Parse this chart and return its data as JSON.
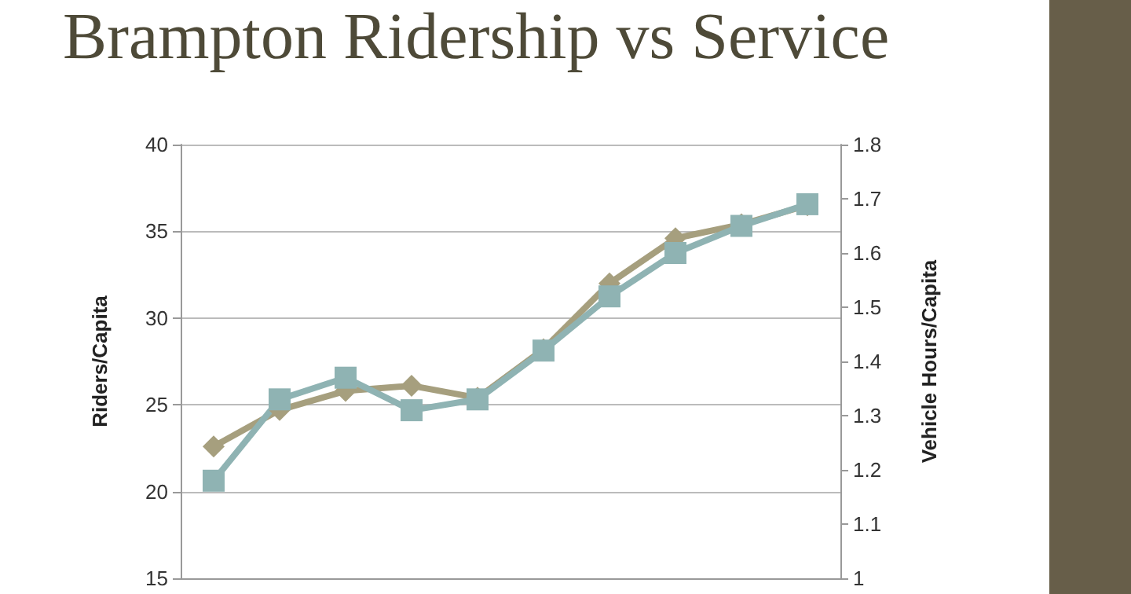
{
  "chart_data": {
    "type": "line",
    "title": "Brampton Ridership vs Service",
    "ylabel": "Riders/Capita",
    "y2label": "Vehicle Hours/Capita",
    "categories": [
      null,
      null,
      null,
      null,
      null,
      null,
      null,
      null,
      null,
      null
    ],
    "series": [
      {
        "color": "#a69f7e",
        "marker": "diamond",
        "values": [
          22.6,
          24.7,
          25.8,
          26.1,
          25.4,
          28.2,
          32.0,
          34.6,
          35.4,
          36.5
        ]
      },
      {
        "color": "#8fb3b3",
        "marker": "square",
        "axis": "y2",
        "values": [
          1.18,
          1.33,
          1.37,
          1.31,
          1.33,
          1.42,
          1.52,
          1.6,
          1.65,
          1.69
        ]
      }
    ],
    "ylim": [
      15,
      40
    ],
    "yticks": [
      15,
      20,
      25,
      30,
      35,
      40
    ],
    "y2lim": [
      1,
      1.8
    ],
    "y2ticks": [
      1,
      1.1,
      1.2,
      1.3,
      1.4,
      1.5,
      1.6,
      1.7,
      1.8
    ],
    "grid": "y",
    "line_style": "solid"
  }
}
